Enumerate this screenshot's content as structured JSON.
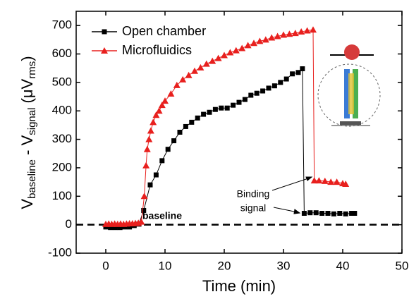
{
  "chart_data": {
    "type": "line",
    "xlabel": "Time (min)",
    "ylabel": [
      "V",
      "baseline",
      " - V",
      "signal",
      " (μV",
      "rms",
      ")"
    ],
    "xlim": [
      -5,
      50
    ],
    "xticks": [
      0,
      10,
      20,
      30,
      40,
      50
    ],
    "ylim": [
      -100,
      750
    ],
    "yticks": [
      -100,
      0,
      100,
      200,
      300,
      400,
      500,
      600,
      700
    ],
    "hline": 0,
    "legend": "upper left",
    "annotations": [
      "baseline",
      "Binding",
      "signal"
    ],
    "series": [
      {
        "name": "Open chamber",
        "color": "#000000",
        "marker": "square",
        "x": [
          0,
          0.8,
          1.6,
          2.4,
          3.2,
          4,
          4.8,
          5.6,
          6.4,
          7.5,
          8.5,
          9.5,
          10.5,
          11.5,
          12.5,
          13.5,
          14.5,
          15.5,
          16.5,
          17.5,
          18.5,
          19.5,
          20.5,
          21.5,
          22.5,
          23.5,
          24.5,
          25.5,
          26.5,
          27.5,
          28.5,
          29.5,
          30.5,
          31.5,
          32.5,
          33.2,
          33.5,
          34.5,
          35.5,
          36.5,
          37.5,
          38.5,
          39.5,
          40.5,
          41.5,
          42
        ],
        "values": [
          -8,
          -10,
          -10,
          -10,
          -8,
          -8,
          -3,
          2,
          50,
          140,
          175,
          225,
          265,
          295,
          325,
          345,
          360,
          375,
          388,
          395,
          405,
          410,
          410,
          420,
          430,
          440,
          455,
          462,
          470,
          480,
          488,
          500,
          512,
          530,
          535,
          548,
          40,
          42,
          42,
          40,
          40,
          38,
          40,
          38,
          40,
          40
        ]
      },
      {
        "name": "Microfluidics",
        "color": "#e8201e",
        "marker": "triangle",
        "x": [
          0,
          0.5,
          1,
          1.5,
          2,
          2.5,
          3,
          3.5,
          4,
          4.5,
          5,
          5.5,
          6,
          6.5,
          6.8,
          7,
          7.3,
          7.6,
          8,
          8.5,
          9,
          9.5,
          10,
          11,
          12,
          13,
          14,
          15,
          16,
          17,
          18,
          19,
          20,
          21,
          22,
          23,
          24,
          25,
          26,
          27,
          28,
          29,
          30,
          31,
          32,
          33,
          34,
          35,
          35.2,
          36,
          37,
          38,
          39,
          40,
          40.5
        ],
        "values": [
          2,
          3,
          2,
          3,
          2,
          3,
          2,
          3,
          4,
          4,
          5,
          6,
          10,
          100,
          208,
          265,
          300,
          330,
          360,
          385,
          400,
          420,
          435,
          460,
          490,
          510,
          525,
          540,
          552,
          565,
          575,
          585,
          595,
          605,
          612,
          620,
          630,
          638,
          645,
          650,
          657,
          662,
          667,
          670,
          673,
          678,
          682,
          685,
          155,
          155,
          153,
          150,
          150,
          145,
          143
        ]
      }
    ]
  }
}
